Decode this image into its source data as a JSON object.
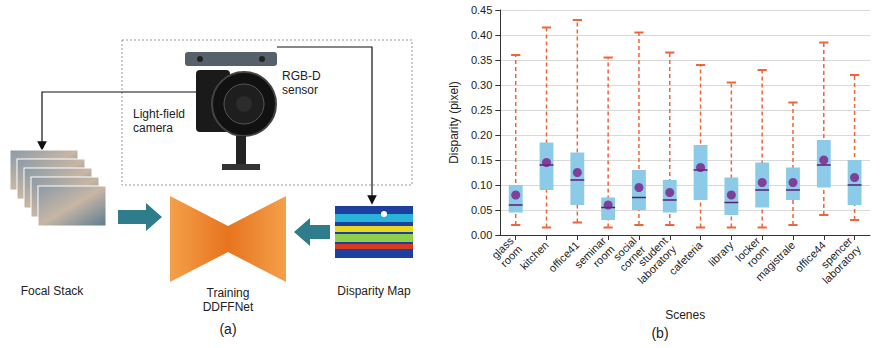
{
  "figure": {
    "panel_a": {
      "label": "(a)",
      "camera": "Light-field camera",
      "sensor": "RGB-D sensor",
      "input": "Focal Stack",
      "network": "Training DDFFNet",
      "output": "Disparity Map"
    },
    "panel_b": {
      "label": "(b)"
    }
  },
  "chart_data": {
    "type": "boxplot",
    "x_label": "Scenes",
    "y_label": "Disparity (pixel)",
    "categories": [
      "glass room",
      "kitchen",
      "office41",
      "seminar room",
      "social corner",
      "student laboratory",
      "cafeteria",
      "library",
      "locker room",
      "magistrale",
      "office44",
      "spencer laboratory"
    ],
    "series": [
      {
        "type": "boxplot",
        "color": "#8ccbe8",
        "values": [
          [
            0.02,
            0.045,
            0.06,
            0.1,
            0.36
          ],
          [
            0.015,
            0.09,
            0.14,
            0.185,
            0.415
          ],
          [
            0.025,
            0.06,
            0.11,
            0.165,
            0.43
          ],
          [
            0.015,
            0.03,
            0.055,
            0.075,
            0.355
          ],
          [
            0.02,
            0.05,
            0.075,
            0.13,
            0.405
          ],
          [
            0.02,
            0.045,
            0.07,
            0.11,
            0.365
          ],
          [
            0.015,
            0.07,
            0.13,
            0.18,
            0.34
          ],
          [
            0.015,
            0.04,
            0.065,
            0.115,
            0.305
          ],
          [
            0.015,
            0.055,
            0.09,
            0.145,
            0.33
          ],
          [
            0.02,
            0.07,
            0.09,
            0.135,
            0.265
          ],
          [
            0.04,
            0.095,
            0.14,
            0.19,
            0.385
          ],
          [
            0.03,
            0.06,
            0.1,
            0.15,
            0.32
          ]
        ]
      },
      {
        "type": "scatter",
        "marker": "circle",
        "color": "#7a1d86",
        "values": [
          0.08,
          0.145,
          0.125,
          0.06,
          0.095,
          0.085,
          0.135,
          0.08,
          0.105,
          0.105,
          0.15,
          0.115
        ]
      }
    ],
    "ylim": [
      0,
      0.45
    ],
    "yticks": [
      {
        "value": 0,
        "label": "0.00"
      },
      0.05,
      {
        "value": 0.1,
        "label": "0.10"
      },
      0.15,
      {
        "value": 0.2,
        "label": "0.20"
      },
      0.25,
      {
        "value": 0.3,
        "label": "0.30"
      },
      0.35,
      {
        "value": 0.4,
        "label": "0.40"
      },
      0.45
    ],
    "grid": true
  }
}
